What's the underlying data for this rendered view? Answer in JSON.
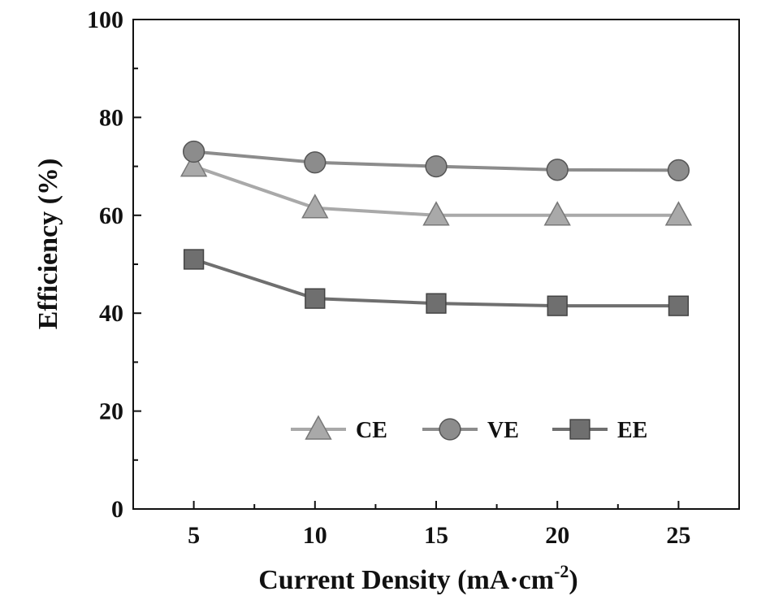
{
  "chart_data": {
    "type": "line",
    "title": "",
    "xlabel": "Current Density (mA·cm",
    "xlabel_superscript": "-2",
    "xlabel_close": ")",
    "ylabel": "Efficiency (%)",
    "x": [
      5,
      10,
      15,
      20,
      25
    ],
    "xlim": [
      2.5,
      27.5
    ],
    "ylim": [
      0,
      100
    ],
    "xticks": [
      "5",
      "10",
      "15",
      "20",
      "25"
    ],
    "yticks": [
      "0",
      "20",
      "40",
      "60",
      "80",
      "100"
    ],
    "grid": false,
    "legend_position": "bottom-right",
    "series": [
      {
        "name": "CE",
        "marker": "triangle",
        "color": "#a9a9a9",
        "values": [
          70,
          61.5,
          60,
          60,
          60
        ]
      },
      {
        "name": "VE",
        "marker": "circle",
        "color": "#8c8c8c",
        "values": [
          73,
          70.8,
          70,
          69.3,
          69.2
        ]
      },
      {
        "name": "EE",
        "marker": "square",
        "color": "#6f6f6f",
        "values": [
          51,
          43,
          42,
          41.5,
          41.5
        ]
      }
    ]
  }
}
